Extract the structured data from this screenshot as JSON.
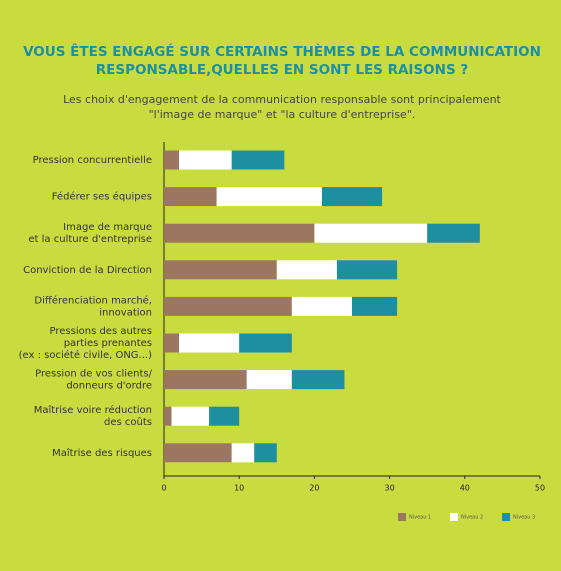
{
  "chart_data": {
    "type": "stacked-barh",
    "title": [
      "VOUS ÊTES ENGAGÉ SUR CERTAINS THÈMES DE LA COMMUNICATION",
      "RESPONSABLE,QUELLES EN SONT LES RAISONS ?"
    ],
    "subtitle": [
      "Les choix d'engagement de la communication responsable sont principalement",
      "\"l'image de marque\" et \"la culture d'entreprise\"."
    ],
    "categories": [
      [
        "Pression concurrentielle"
      ],
      [
        "Fédérer ses équipes"
      ],
      [
        "Image de marque",
        "et la culture d'entreprise"
      ],
      [
        "Conviction de la Direction"
      ],
      [
        "Différenciation marché,",
        "innovation"
      ],
      [
        "Pressions des autres",
        "parties prenantes",
        "(ex : société civile, ONG...)"
      ],
      [
        "Pression de vos clients/",
        "donneurs d'ordre"
      ],
      [
        "Maîtrise voire réduction",
        "des coûts"
      ],
      [
        "Maîtrise des risques"
      ]
    ],
    "series": [
      {
        "name": "Niveau 1",
        "color": "#9b7761",
        "values": [
          2,
          7,
          20,
          15,
          17,
          2,
          11,
          1,
          9
        ]
      },
      {
        "name": "Niveau 2",
        "color": "#ffffff",
        "values": [
          7,
          14,
          15,
          8,
          8,
          8,
          6,
          5,
          3
        ]
      },
      {
        "name": "Niveau 3",
        "color": "#1d8fa1",
        "values": [
          7,
          8,
          7,
          8,
          6,
          7,
          7,
          4,
          3
        ]
      }
    ],
    "xlim": [
      0,
      50
    ],
    "xticks": [
      0,
      10,
      20,
      30,
      40,
      50
    ],
    "legend": "bottom-right"
  }
}
